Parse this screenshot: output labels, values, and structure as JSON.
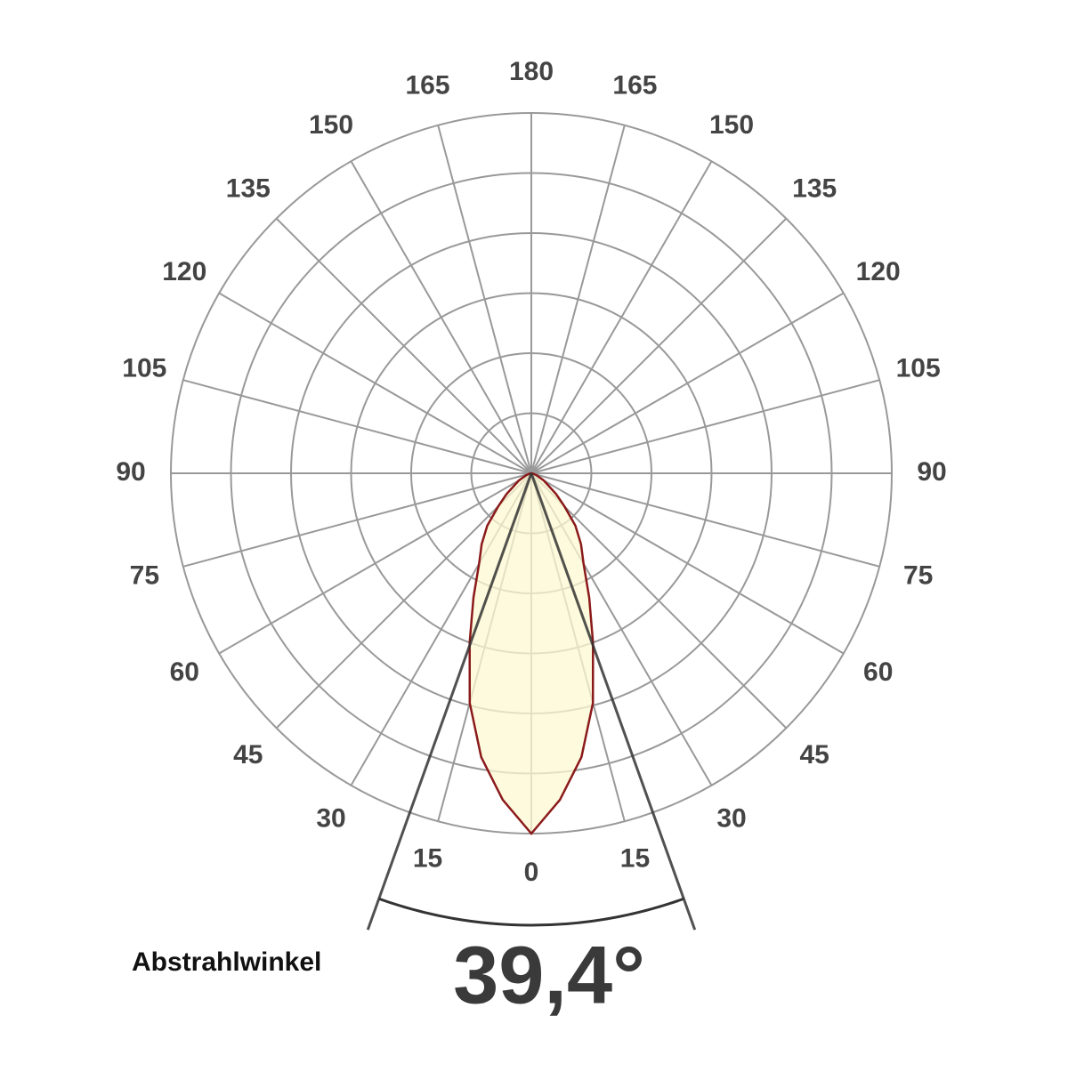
{
  "chart_data": {
    "type": "polar",
    "angle_ticks": [
      0,
      15,
      30,
      45,
      60,
      75,
      90,
      105,
      120,
      135,
      150,
      165,
      180
    ],
    "rlim": [
      0,
      6
    ],
    "rgrid": [
      1,
      2,
      3,
      4,
      5,
      6
    ],
    "series": [
      {
        "color": "#8b1a1a",
        "angles": [
          -90,
          -80,
          -70,
          -60,
          -50,
          -45,
          -40,
          -35,
          -30,
          -25,
          -20,
          -15,
          -10,
          -5,
          0,
          5,
          10,
          15,
          20,
          25,
          30,
          35,
          40,
          45,
          50,
          60,
          70,
          80,
          90
        ],
        "values": [
          0,
          0.03,
          0.09,
          0.24,
          0.54,
          0.78,
          1.14,
          1.44,
          1.74,
          2.28,
          3.0,
          3.96,
          4.8,
          5.46,
          6,
          5.46,
          4.8,
          3.96,
          3.0,
          2.28,
          1.74,
          1.44,
          1.14,
          0.78,
          0.54,
          0.24,
          0.09,
          0.03,
          0
        ]
      }
    ],
    "beam_angle": 39.4,
    "beam_angle_label": "39,4°",
    "beam_caption": "Abstrahlwinkel"
  }
}
